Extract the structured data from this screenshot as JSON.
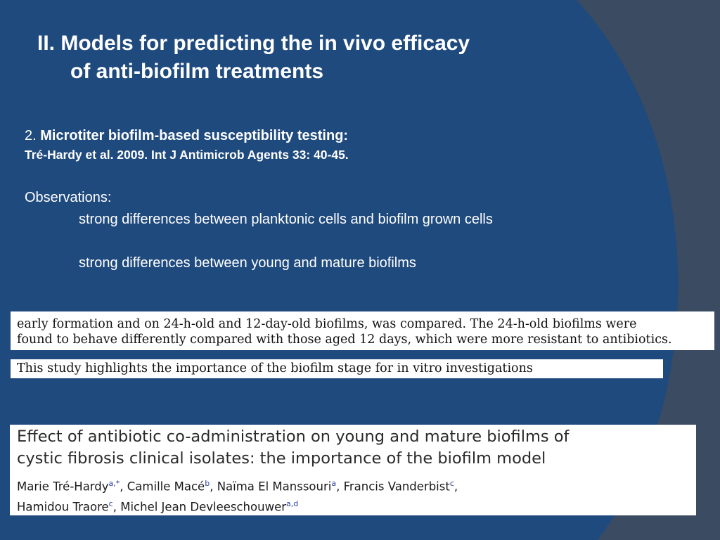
{
  "title": [
    "II. Models for predicting the in vivo efficacy",
    "of anti-biofilm treatments"
  ],
  "section": {
    "number": "2.",
    "heading": "Microtiter biofilm-based susceptibility testing:",
    "citation": "Tré-Hardy et al. 2009. Int J Antimicrob Agents 33: 40-45."
  },
  "observations": {
    "label": "Observations:",
    "items": [
      "strong differences between planktonic cells and biofilm grown cells",
      "strong differences between young and mature biofilms"
    ]
  },
  "excerpt": {
    "lines": [
      "early formation and on 24-h-old and 12-day-old biofilms, was compared. The 24-h-old biofilms were",
      "found to behave differently compared with those aged 12 days, which were more resistant to antibiotics."
    ],
    "highlight": "This study highlights the importance of the biofilm stage for in vitro investigations"
  },
  "paper": {
    "title": [
      "Effect of antibiotic co-administration on young and mature biofilms of",
      "cystic fibrosis clinical isolates: the importance of the biofilm model"
    ],
    "authors": [
      [
        {
          "text": "Marie Tré-Hardy"
        },
        {
          "sup": "a,*"
        },
        {
          "text": ", Camille Macé"
        },
        {
          "sup": "b"
        },
        {
          "text": ", Naïma El Manssouri"
        },
        {
          "sup": "a"
        },
        {
          "text": ", Francis Vanderbist"
        },
        {
          "sup": "c"
        },
        {
          "text": ","
        }
      ],
      [
        {
          "text": "Hamidou Traore"
        },
        {
          "sup": "c"
        },
        {
          "text": ", Michel Jean Devleeschouwer"
        },
        {
          "sup": "a,d"
        }
      ]
    ]
  }
}
